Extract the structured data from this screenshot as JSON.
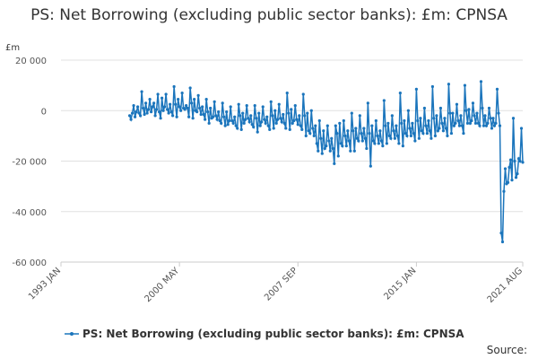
{
  "chart_data": {
    "type": "line",
    "title": "PS: Net Borrowing (excluding public sector banks): £m: CPNSA",
    "y_unit": "£m",
    "source": "Source:",
    "xlim": [
      "1993 JAN",
      "2021 AUG"
    ],
    "xticks": [
      "1993 JAN",
      "2000 MAY",
      "2007 SEP",
      "2015 JAN",
      "2021 AUG"
    ],
    "ylim": [
      -60000,
      20000
    ],
    "yticks": [
      {
        "value": -60000,
        "label": "-60 000"
      },
      {
        "value": -40000,
        "label": "-40 000"
      },
      {
        "value": -20000,
        "label": "-20 000"
      },
      0,
      {
        "value": 20000,
        "label": "20 000"
      }
    ],
    "grid": true,
    "x": [
      "1997 APR",
      "1997 MAY",
      "1997 JUN",
      "1997 JUL",
      "1997 AUG",
      "1997 SEP",
      "1997 OCT",
      "1997 NOV",
      "1997 DEC",
      "1998 JAN",
      "1998 FEB",
      "1998 MAR",
      "1998 APR",
      "1998 MAY",
      "1998 JUN",
      "1998 JUL",
      "1998 AUG",
      "1998 SEP",
      "1998 OCT",
      "1998 NOV",
      "1998 DEC",
      "1999 JAN",
      "1999 FEB",
      "1999 MAR",
      "1999 APR",
      "1999 MAY",
      "1999 JUN",
      "1999 JUL",
      "1999 AUG",
      "1999 SEP",
      "1999 OCT",
      "1999 NOV",
      "1999 DEC",
      "2000 JAN",
      "2000 FEB",
      "2000 MAR",
      "2000 APR",
      "2000 MAY",
      "2000 JUN",
      "2000 JUL",
      "2000 AUG",
      "2000 SEP",
      "2000 OCT",
      "2000 NOV",
      "2000 DEC",
      "2001 JAN",
      "2001 FEB",
      "2001 MAR",
      "2001 APR",
      "2001 MAY",
      "2001 JUN",
      "2001 JUL",
      "2001 AUG",
      "2001 SEP",
      "2001 OCT",
      "2001 NOV",
      "2001 DEC",
      "2002 JAN",
      "2002 FEB",
      "2002 MAR",
      "2002 APR",
      "2002 MAY",
      "2002 JUN",
      "2002 JUL",
      "2002 AUG",
      "2002 SEP",
      "2002 OCT",
      "2002 NOV",
      "2002 DEC",
      "2003 JAN",
      "2003 FEB",
      "2003 MAR",
      "2003 APR",
      "2003 MAY",
      "2003 JUN",
      "2003 JUL",
      "2003 AUG",
      "2003 SEP",
      "2003 OCT",
      "2003 NOV",
      "2003 DEC",
      "2004 JAN",
      "2004 FEB",
      "2004 MAR",
      "2004 APR",
      "2004 MAY",
      "2004 JUN",
      "2004 JUL",
      "2004 AUG",
      "2004 SEP",
      "2004 OCT",
      "2004 NOV",
      "2004 DEC",
      "2005 JAN",
      "2005 FEB",
      "2005 MAR",
      "2005 APR",
      "2005 MAY",
      "2005 JUN",
      "2005 JUL",
      "2005 AUG",
      "2005 SEP",
      "2005 OCT",
      "2005 NOV",
      "2005 DEC",
      "2006 JAN",
      "2006 FEB",
      "2006 MAR",
      "2006 APR",
      "2006 MAY",
      "2006 JUN",
      "2006 JUL",
      "2006 AUG",
      "2006 SEP",
      "2006 OCT",
      "2006 NOV",
      "2006 DEC",
      "2007 JAN",
      "2007 FEB",
      "2007 MAR",
      "2007 APR",
      "2007 MAY",
      "2007 JUN",
      "2007 JUL",
      "2007 AUG",
      "2007 SEP",
      "2007 OCT",
      "2007 NOV",
      "2007 DEC",
      "2008 JAN",
      "2008 FEB",
      "2008 MAR",
      "2008 APR",
      "2008 MAY",
      "2008 JUN",
      "2008 JUL",
      "2008 AUG",
      "2008 SEP",
      "2008 OCT",
      "2008 NOV",
      "2008 DEC",
      "2009 JAN",
      "2009 FEB",
      "2009 MAR",
      "2009 APR",
      "2009 MAY",
      "2009 JUN",
      "2009 JUL",
      "2009 AUG",
      "2009 SEP",
      "2009 OCT",
      "2009 NOV",
      "2009 DEC",
      "2010 JAN",
      "2010 FEB",
      "2010 MAR",
      "2010 APR",
      "2010 MAY",
      "2010 JUN",
      "2010 JUL",
      "2010 AUG",
      "2010 SEP",
      "2010 OCT",
      "2010 NOV",
      "2010 DEC",
      "2011 JAN",
      "2011 FEB",
      "2011 MAR",
      "2011 APR",
      "2011 MAY",
      "2011 JUN",
      "2011 JUL",
      "2011 AUG",
      "2011 SEP",
      "2011 OCT",
      "2011 NOV",
      "2011 DEC",
      "2012 JAN",
      "2012 FEB",
      "2012 MAR",
      "2012 APR",
      "2012 MAY",
      "2012 JUN",
      "2012 JUL",
      "2012 AUG",
      "2012 SEP",
      "2012 OCT",
      "2012 NOV",
      "2012 DEC",
      "2013 JAN",
      "2013 FEB",
      "2013 MAR",
      "2013 APR",
      "2013 MAY",
      "2013 JUN",
      "2013 JUL",
      "2013 AUG",
      "2013 SEP",
      "2013 OCT",
      "2013 NOV",
      "2013 DEC",
      "2014 JAN",
      "2014 FEB",
      "2014 MAR",
      "2014 APR",
      "2014 MAY",
      "2014 JUN",
      "2014 JUL",
      "2014 AUG",
      "2014 SEP",
      "2014 OCT",
      "2014 NOV",
      "2014 DEC",
      "2015 JAN",
      "2015 FEB",
      "2015 MAR",
      "2015 APR",
      "2015 MAY",
      "2015 JUN",
      "2015 JUL",
      "2015 AUG",
      "2015 SEP",
      "2015 OCT",
      "2015 NOV",
      "2015 DEC",
      "2016 JAN",
      "2016 FEB",
      "2016 MAR",
      "2016 APR",
      "2016 MAY",
      "2016 JUN",
      "2016 JUL",
      "2016 AUG",
      "2016 SEP",
      "2016 OCT",
      "2016 NOV",
      "2016 DEC",
      "2017 JAN",
      "2017 FEB",
      "2017 MAR",
      "2017 APR",
      "2017 MAY",
      "2017 JUN",
      "2017 JUL",
      "2017 AUG",
      "2017 SEP",
      "2017 OCT",
      "2017 NOV",
      "2017 DEC",
      "2018 JAN",
      "2018 FEB",
      "2018 MAR",
      "2018 APR",
      "2018 MAY",
      "2018 JUN",
      "2018 JUL",
      "2018 AUG",
      "2018 SEP",
      "2018 OCT",
      "2018 NOV",
      "2018 DEC",
      "2019 JAN",
      "2019 FEB",
      "2019 MAR",
      "2019 APR",
      "2019 MAY",
      "2019 JUN",
      "2019 JUL",
      "2019 AUG",
      "2019 SEP",
      "2019 OCT",
      "2019 NOV",
      "2019 DEC",
      "2020 JAN",
      "2020 FEB",
      "2020 MAR",
      "2020 APR",
      "2020 MAY",
      "2020 JUN",
      "2020 JUL",
      "2020 AUG",
      "2020 SEP",
      "2020 OCT",
      "2020 NOV",
      "2020 DEC",
      "2021 JAN",
      "2021 FEB",
      "2021 MAR",
      "2021 APR",
      "2021 MAY",
      "2021 JUN",
      "2021 JUL",
      "2021 AUG"
    ],
    "series": [
      {
        "name": "PS: Net Borrowing (excluding public sector banks): £m: CPNSA",
        "color": "#1b75bc",
        "values": [
          -2000,
          -3500,
          -1000,
          2000,
          -2500,
          -500,
          1500,
          -1000,
          -2000,
          7500,
          1000,
          -1500,
          3000,
          -1000,
          500,
          4500,
          -500,
          1500,
          3000,
          -2000,
          500,
          6500,
          -500,
          -3000,
          5000,
          0,
          1500,
          6500,
          500,
          -1000,
          2500,
          -500,
          -2000,
          9500,
          2500,
          -2500,
          4500,
          1500,
          0,
          7000,
          1000,
          500,
          2000,
          1000,
          -2500,
          9000,
          3000,
          -3000,
          4500,
          0,
          -500,
          6000,
          1000,
          -1500,
          1500,
          -1500,
          -3500,
          4500,
          -500,
          -5000,
          1000,
          -3000,
          -2500,
          3500,
          -2000,
          -3500,
          -500,
          -4000,
          -5000,
          3000,
          -2500,
          -6000,
          -500,
          -5500,
          -4000,
          1500,
          -4000,
          -5000,
          -2500,
          -6000,
          -7000,
          2500,
          -2000,
          -7500,
          -1000,
          -5000,
          -3500,
          2000,
          -3000,
          -4500,
          -2000,
          -5500,
          -6500,
          2000,
          -3000,
          -8500,
          -1000,
          -6000,
          -4500,
          1500,
          -3500,
          -5000,
          -2500,
          -6000,
          -7500,
          3500,
          -2000,
          -7000,
          0,
          -5000,
          -3500,
          2500,
          -3000,
          -4500,
          -1500,
          -5000,
          -7000,
          7000,
          -1000,
          -7500,
          500,
          -5000,
          -4000,
          2000,
          -3500,
          -5500,
          -2000,
          -6000,
          -7500,
          6500,
          -2000,
          -10000,
          -1000,
          -8000,
          -9000,
          0,
          -7000,
          -10000,
          -6000,
          -13000,
          -16000,
          -4000,
          -11000,
          -17000,
          -8000,
          -15000,
          -14000,
          -6000,
          -12000,
          -16000,
          -11000,
          -15000,
          -21000,
          -6000,
          -9000,
          -18000,
          -5000,
          -13000,
          -14000,
          -4000,
          -10000,
          -14000,
          -8000,
          -12000,
          -16000,
          -1000,
          -8000,
          -16000,
          -7000,
          -11000,
          -12000,
          -2000,
          -9000,
          -12000,
          -7000,
          -11000,
          -15000,
          3000,
          -9000,
          -22000,
          -6000,
          -12000,
          -13000,
          -4000,
          -10000,
          -13000,
          -8000,
          -12000,
          -14000,
          4000,
          -6000,
          -13000,
          -5000,
          -10000,
          -11000,
          -2000,
          -8000,
          -11000,
          -6000,
          -10000,
          -13000,
          7000,
          -5000,
          -14000,
          -4000,
          -9000,
          -10000,
          0,
          -7000,
          -10000,
          -5000,
          -9000,
          -12000,
          8500,
          -4000,
          -11000,
          -3000,
          -8000,
          -9000,
          1000,
          -6000,
          -9000,
          -4000,
          -8000,
          -11000,
          9500,
          -3000,
          -10000,
          -2000,
          -8000,
          -7000,
          1000,
          -5000,
          -8000,
          -3000,
          -7000,
          -10000,
          10500,
          -1000,
          -9000,
          -1000,
          -6000,
          -5000,
          2500,
          -4000,
          -6000,
          -2000,
          -6000,
          -9000,
          10000,
          0,
          -5000,
          500,
          -5000,
          -4000,
          3000,
          -2000,
          -5000,
          -1000,
          -5000,
          -6000,
          11500,
          1000,
          -6000,
          -2000,
          -6000,
          -5000,
          1000,
          -3000,
          -7000,
          -3000,
          -6000,
          -5000,
          8500,
          -1000,
          -6000,
          -48500,
          -52000,
          -32000,
          -23000,
          -29000,
          -28500,
          -22500,
          -19500,
          -27500,
          -3000,
          -20000,
          -26500,
          -25000,
          -19000,
          -20000,
          -7000,
          -20500
        ]
      }
    ]
  }
}
